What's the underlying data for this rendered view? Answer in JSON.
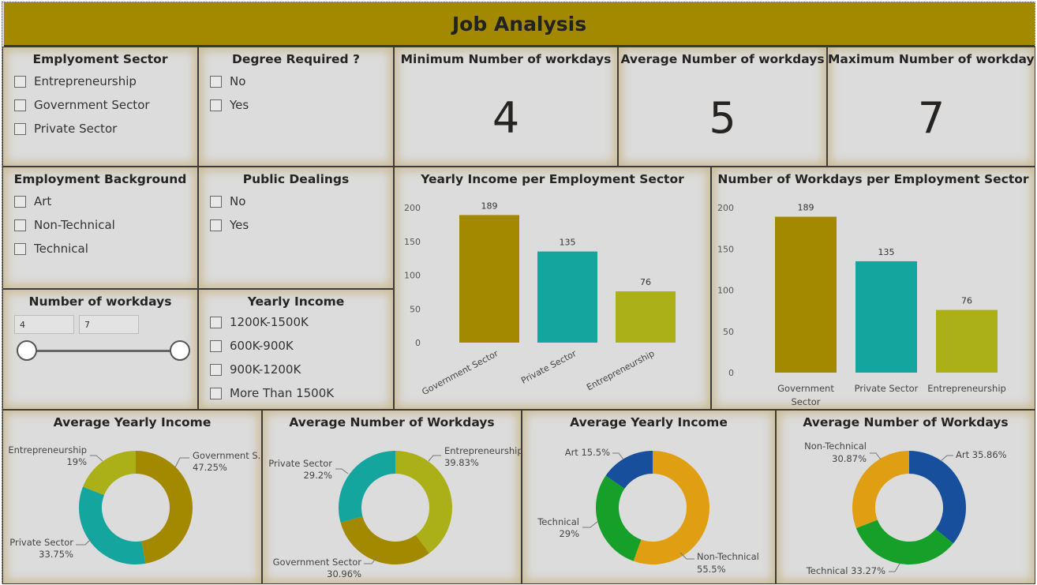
{
  "title": "Job Analysis",
  "slicers": {
    "employment_sector": {
      "title": "Emplyoment Sector",
      "items": [
        "Entrepreneurship",
        "Government Sector",
        "Private Sector"
      ]
    },
    "degree_required": {
      "title": "Degree Required ?",
      "items": [
        "No",
        "Yes"
      ]
    },
    "employment_background": {
      "title": "Employment Background",
      "items": [
        "Art",
        "Non-Technical",
        "Technical"
      ]
    },
    "public_dealings": {
      "title": "Public Dealings",
      "items": [
        "No",
        "Yes"
      ]
    },
    "workdays": {
      "title": "Number of workdays",
      "min": "4",
      "max": "7"
    },
    "yearly_income": {
      "title": "Yearly Income",
      "items": [
        "1200K-1500K",
        "600K-900K",
        "900K-1200K",
        "More Than 1500K"
      ]
    }
  },
  "kpis": {
    "min": {
      "title": "Minimum Number of workdays",
      "value": "4"
    },
    "avg": {
      "title": "Average Number of workdays",
      "value": "5"
    },
    "max": {
      "title": "Maximum Number of workdays",
      "value": "7"
    }
  },
  "colors": {
    "olive": "#a38900",
    "teal": "#14a59e",
    "lime": "#abb018",
    "orange": "#e09f12",
    "green": "#16a02a",
    "blue": "#174f9c"
  },
  "chart_data": [
    {
      "type": "bar",
      "title": "Yearly Income per Employment Sector",
      "categories": [
        "Government Sector",
        "Private Sector",
        "Entrepreneurship"
      ],
      "values": [
        189,
        135,
        76
      ],
      "colors": [
        "#a38900",
        "#14a59e",
        "#abb018"
      ],
      "yticks": [
        0,
        50,
        100,
        150,
        200
      ],
      "ylim": [
        0,
        200
      ]
    },
    {
      "type": "bar",
      "title": "Number of Workdays per Employment Sector",
      "categories": [
        "Government Sector",
        "Private Sector",
        "Entrepreneurship"
      ],
      "values": [
        189,
        135,
        76
      ],
      "colors": [
        "#a38900",
        "#14a59e",
        "#abb018"
      ],
      "yticks": [
        0,
        50,
        100,
        150,
        200
      ],
      "ylim": [
        0,
        200
      ]
    },
    {
      "type": "pie",
      "title": "Average Yearly Income",
      "slices": [
        {
          "label": "Government S...",
          "pct": "47.25%",
          "value": 47.25,
          "color": "#a38900"
        },
        {
          "label": "Private Sector",
          "pct": "33.75%",
          "value": 33.75,
          "color": "#14a59e"
        },
        {
          "label": "Entrepreneurship",
          "pct": "19%",
          "value": 19,
          "color": "#abb018"
        }
      ]
    },
    {
      "type": "pie",
      "title": "Average Number of Workdays",
      "slices": [
        {
          "label": "Entrepreneurship",
          "pct": "39.83%",
          "value": 39.83,
          "color": "#abb018"
        },
        {
          "label": "Government Sector",
          "pct": "30.96%",
          "value": 30.96,
          "color": "#a38900"
        },
        {
          "label": "Private Sector",
          "pct": "29.2%",
          "value": 29.2,
          "color": "#14a59e"
        }
      ]
    },
    {
      "type": "pie",
      "title": "Average Yearly Income",
      "slices": [
        {
          "label": "Non-Technical",
          "pct": "55.5%",
          "value": 55.5,
          "color": "#e09f12"
        },
        {
          "label": "Technical",
          "pct": "29%",
          "value": 29,
          "color": "#16a02a"
        },
        {
          "label": "Art",
          "pct": "15.5%",
          "value": 15.5,
          "color": "#174f9c"
        }
      ]
    },
    {
      "type": "pie",
      "title": "Average Number of Workdays",
      "slices": [
        {
          "label": "Art",
          "pct": "35.86%",
          "value": 35.86,
          "color": "#174f9c"
        },
        {
          "label": "Technical",
          "pct": "33.27%",
          "value": 33.27,
          "color": "#16a02a"
        },
        {
          "label": "Non-Technical",
          "pct": "30.87%",
          "value": 30.87,
          "color": "#e09f12"
        }
      ]
    }
  ]
}
